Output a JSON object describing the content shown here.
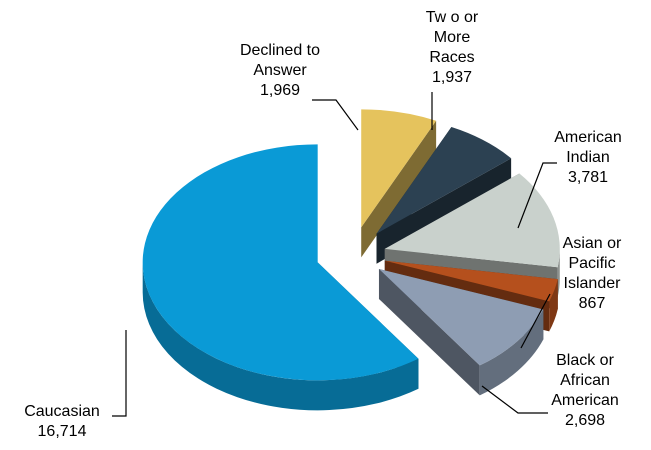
{
  "chart_data": {
    "type": "pie",
    "title": "",
    "exploded": true,
    "three_d": true,
    "slices": [
      {
        "label_lines": [
          "Declined to",
          "Answer"
        ],
        "value": 1969,
        "value_text": "1,969",
        "color": "#E5C35D"
      },
      {
        "label_lines": [
          "Tw o or",
          "More",
          "Races"
        ],
        "value": 1937,
        "value_text": "1,937",
        "color": "#2C4152"
      },
      {
        "label_lines": [
          "American",
          "Indian"
        ],
        "value": 3781,
        "value_text": "3,781",
        "color": "#C9D1CC"
      },
      {
        "label_lines": [
          "Asian or",
          "Pacific",
          "Islander"
        ],
        "value": 867,
        "value_text": "867",
        "color": "#B5501D"
      },
      {
        "label_lines": [
          "Black or",
          "African",
          "American"
        ],
        "value": 2698,
        "value_text": "2,698",
        "color": "#8E9DB3"
      },
      {
        "label_lines": [
          "Caucasian"
        ],
        "value": 16714,
        "value_text": "16,714",
        "color": "#0A9AD6"
      }
    ]
  }
}
